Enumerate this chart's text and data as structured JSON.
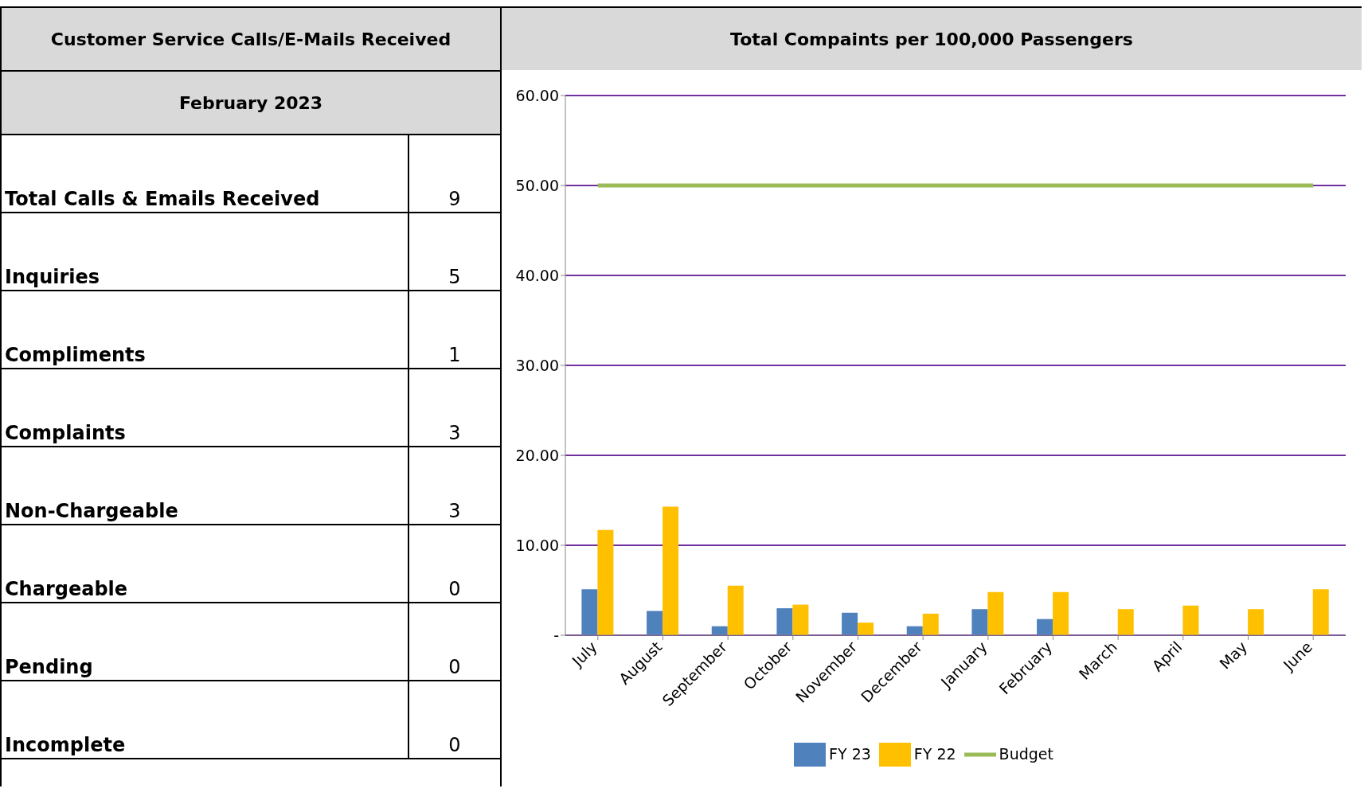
{
  "chart_data": [
    {
      "type": "other",
      "title": "Customer Service Calls/E-Mails Received",
      "subtitle": "February 2023",
      "categories": [
        "Total Calls & Emails Received",
        "Inquiries",
        "Compliments",
        "Complaints",
        "Non-Chargeable",
        "Chargeable",
        "Pending",
        "Incomplete"
      ],
      "values": [
        9,
        5,
        1,
        3,
        3,
        0,
        0,
        0
      ],
      "data_labels": true
    },
    {
      "type": "bar",
      "title": "Total Compaints per 100,000 Passengers",
      "categories": [
        "July",
        "August",
        "September",
        "October",
        "November",
        "December",
        "January",
        "February",
        "March",
        "April",
        "May",
        "June"
      ],
      "series": [
        {
          "name": "FY 23",
          "color": "#4f81bd",
          "values": [
            5.1,
            2.7,
            1.0,
            3.0,
            2.5,
            1.0,
            2.9,
            1.8,
            null,
            null,
            null,
            null
          ]
        },
        {
          "name": "FY 22",
          "color": "#ffc000",
          "values": [
            11.7,
            14.3,
            5.5,
            3.4,
            1.4,
            2.4,
            4.8,
            4.8,
            2.9,
            3.3,
            2.9,
            5.1
          ]
        },
        {
          "name": "Budget",
          "color": "#9bbb59",
          "type": "line",
          "marker": "none",
          "values": [
            50,
            50,
            50,
            50,
            50,
            50,
            50,
            50,
            50,
            50,
            50,
            50
          ]
        }
      ],
      "ylim": [
        0,
        60
      ],
      "yticks": [
        {
          "value": 0,
          "label": "-"
        },
        {
          "value": 10,
          "label": "10.00"
        },
        {
          "value": 20,
          "label": "20.00"
        },
        {
          "value": 30,
          "label": "30.00"
        },
        {
          "value": 40,
          "label": "40.00"
        },
        {
          "value": 50,
          "label": "50.00"
        },
        {
          "value": 60,
          "label": "60.00"
        }
      ],
      "grid": "y",
      "legend": "bottom"
    }
  ]
}
